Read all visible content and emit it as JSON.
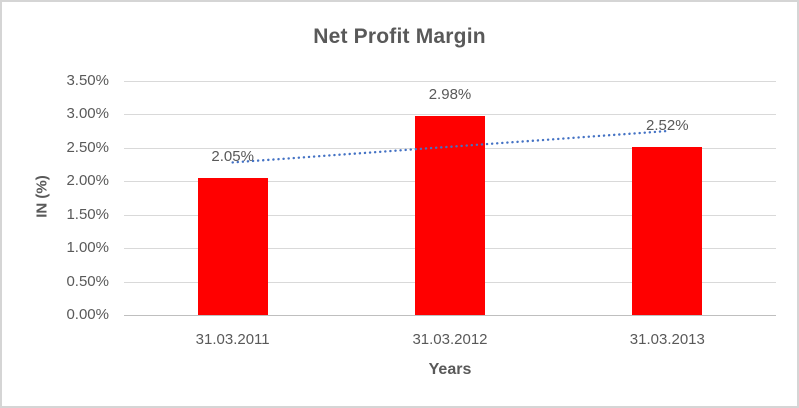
{
  "chart_data": {
    "type": "bar",
    "title": "Net Profit Margin",
    "xlabel": "Years",
    "ylabel": "IN (%)",
    "categories": [
      "31.03.2011",
      "31.03.2012",
      "31.03.2013"
    ],
    "values": [
      2.05,
      2.98,
      2.52
    ],
    "value_labels": [
      "2.05%",
      "2.98%",
      "2.52%"
    ],
    "ylim": [
      0,
      3.5
    ],
    "ytick_step": 0.5,
    "ytick_labels": [
      "0.00%",
      "0.50%",
      "1.00%",
      "1.50%",
      "2.00%",
      "2.50%",
      "3.00%",
      "3.50%"
    ],
    "grid": true,
    "legend": "none",
    "trendline": {
      "type": "linear",
      "style": "dotted"
    },
    "colors": {
      "bar": "#ff0000",
      "trendline": "#4472c4",
      "gridline": "#d9d9d9",
      "axis_line": "#bfbfbf",
      "text": "#595959",
      "border": "#d5d5d5",
      "background": "#ffffff"
    }
  }
}
